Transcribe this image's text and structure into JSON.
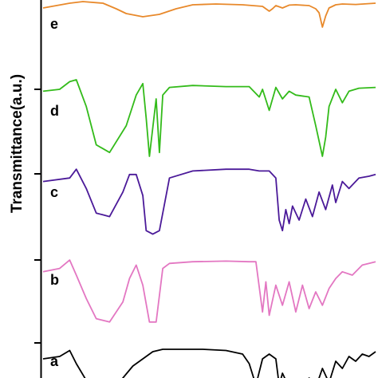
{
  "chart_data": {
    "type": "line",
    "title": "",
    "xlabel": "",
    "ylabel": "Transmittance(a.u.)",
    "grid": false,
    "legend": "none",
    "series": [
      {
        "name": "e",
        "color": "#e8892b",
        "x": [
          0.0,
          0.08,
          0.12,
          0.18,
          0.22,
          0.25,
          0.3,
          0.35,
          0.4,
          0.45,
          0.52,
          0.6,
          0.66,
          0.68,
          0.69,
          0.7,
          0.72,
          0.74,
          0.76,
          0.8,
          0.82,
          0.83,
          0.84,
          0.85,
          0.86,
          0.88,
          0.9,
          0.94,
          1.0
        ],
        "y": [
          0.6,
          0.9,
          1.0,
          0.9,
          0.55,
          0.25,
          0.05,
          0.2,
          0.55,
          0.8,
          0.85,
          0.8,
          0.7,
          0.4,
          0.55,
          0.75,
          0.6,
          0.78,
          0.8,
          0.75,
          0.55,
          0.3,
          -0.6,
          0.1,
          0.6,
          0.8,
          0.85,
          0.82,
          0.9
        ]
      },
      {
        "name": "d",
        "color": "#33bb1a",
        "x": [
          0.0,
          0.05,
          0.08,
          0.1,
          0.13,
          0.16,
          0.2,
          0.25,
          0.28,
          0.3,
          0.31,
          0.32,
          0.34,
          0.35,
          0.36,
          0.38,
          0.45,
          0.55,
          0.62,
          0.65,
          0.66,
          0.68,
          0.7,
          0.72,
          0.74,
          0.76,
          0.8,
          0.82,
          0.84,
          0.85,
          0.86,
          0.88,
          0.9,
          0.92,
          0.95,
          1.0
        ],
        "y": [
          0.7,
          0.75,
          0.95,
          1.0,
          0.3,
          -0.7,
          -0.9,
          -0.2,
          0.6,
          0.9,
          0.0,
          -1.0,
          0.5,
          -0.9,
          0.6,
          0.8,
          0.85,
          0.82,
          0.82,
          0.55,
          0.75,
          0.2,
          0.8,
          0.5,
          0.7,
          0.6,
          0.55,
          -0.2,
          -1.0,
          -0.5,
          0.3,
          0.75,
          0.4,
          0.7,
          0.78,
          0.8
        ]
      },
      {
        "name": "c",
        "color": "#4b1a99",
        "x": [
          0.0,
          0.08,
          0.1,
          0.13,
          0.16,
          0.2,
          0.24,
          0.26,
          0.28,
          0.3,
          0.31,
          0.33,
          0.35,
          0.38,
          0.45,
          0.55,
          0.62,
          0.65,
          0.68,
          0.7,
          0.71,
          0.72,
          0.73,
          0.74,
          0.75,
          0.77,
          0.79,
          0.81,
          0.83,
          0.85,
          0.87,
          0.88,
          0.9,
          0.92,
          0.95,
          0.98,
          1.0
        ],
        "y": [
          0.6,
          0.7,
          0.95,
          0.4,
          -0.3,
          -0.4,
          0.3,
          0.8,
          0.8,
          0.2,
          -0.8,
          -0.9,
          -0.8,
          0.7,
          0.9,
          0.95,
          0.95,
          0.9,
          0.9,
          0.7,
          -0.5,
          -0.8,
          -0.2,
          -0.6,
          -0.1,
          -0.5,
          0.1,
          -0.4,
          0.3,
          -0.2,
          0.5,
          0.0,
          0.6,
          0.4,
          0.7,
          0.75,
          0.8
        ]
      },
      {
        "name": "b",
        "color": "#e377c2",
        "x": [
          0.0,
          0.05,
          0.08,
          0.1,
          0.13,
          0.16,
          0.2,
          0.24,
          0.26,
          0.28,
          0.3,
          0.32,
          0.34,
          0.36,
          0.38,
          0.45,
          0.55,
          0.62,
          0.64,
          0.66,
          0.67,
          0.68,
          0.7,
          0.72,
          0.74,
          0.76,
          0.78,
          0.8,
          0.82,
          0.84,
          0.86,
          0.88,
          0.9,
          0.93,
          0.96,
          1.0
        ],
        "y": [
          0.6,
          0.7,
          0.95,
          0.5,
          -0.2,
          -0.8,
          -0.9,
          -0.3,
          0.4,
          0.8,
          0.2,
          -0.9,
          -0.9,
          0.7,
          0.85,
          0.9,
          0.92,
          0.9,
          0.9,
          -0.6,
          0.3,
          -0.7,
          0.2,
          -0.4,
          0.3,
          -0.6,
          0.2,
          -0.5,
          0.0,
          -0.4,
          0.1,
          0.4,
          0.6,
          0.5,
          0.8,
          0.9
        ]
      },
      {
        "name": "a",
        "color": "#000000",
        "x": [
          0.0,
          0.05,
          0.08,
          0.1,
          0.13,
          0.16,
          0.2,
          0.24,
          0.27,
          0.3,
          0.33,
          0.36,
          0.4,
          0.48,
          0.55,
          0.6,
          0.62,
          0.64,
          0.66,
          0.68,
          0.7,
          0.71,
          0.72,
          0.74,
          0.76,
          0.78,
          0.8,
          0.82,
          0.84,
          0.86,
          0.88,
          0.9,
          0.92,
          0.94,
          0.96,
          0.98,
          1.0
        ],
        "y": [
          0.6,
          0.7,
          0.95,
          0.4,
          -0.3,
          -0.6,
          -0.8,
          -0.2,
          0.3,
          0.6,
          0.9,
          1.0,
          1.0,
          1.0,
          0.95,
          0.8,
          0.4,
          -0.5,
          0.6,
          0.8,
          0.6,
          -0.5,
          0.0,
          -0.6,
          -0.3,
          -0.8,
          -0.2,
          -0.6,
          0.2,
          -0.4,
          0.5,
          0.2,
          0.7,
          0.5,
          0.8,
          0.7,
          0.9
        ]
      }
    ]
  }
}
